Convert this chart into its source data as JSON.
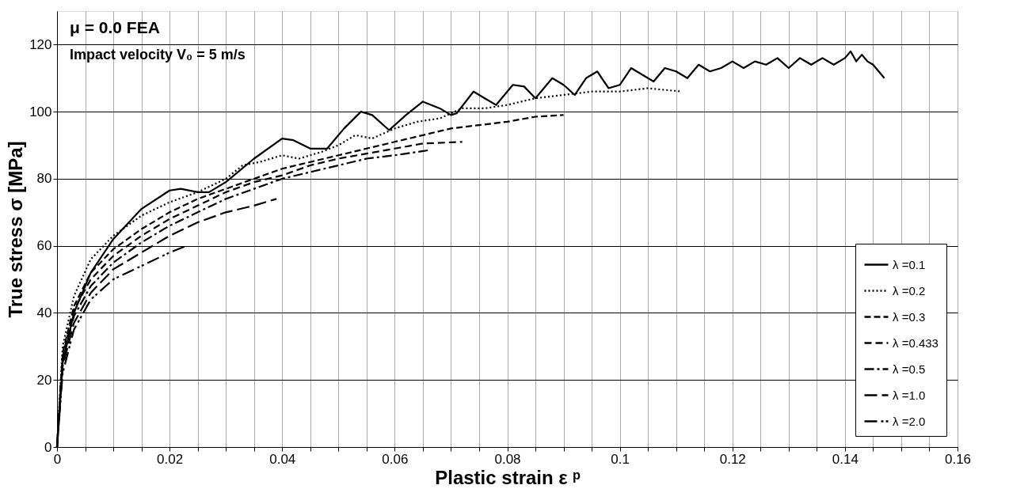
{
  "chart_data": {
    "type": "line",
    "xlabel": "Plastic strain  ε ᵖ",
    "ylabel": "True stress σ  [MPa]",
    "annotations": [
      "μ = 0.0      FEA",
      "Impact velocity V₀ = 5 m/s"
    ],
    "xlim": [
      0,
      0.16
    ],
    "ylim": [
      0,
      130
    ],
    "xticks": [
      0,
      {
        "value": 0.005,
        "label": null
      },
      {
        "value": 0.01,
        "label": null
      },
      {
        "value": 0.015,
        "label": null
      },
      0.02,
      {
        "value": 0.025,
        "label": null
      },
      {
        "value": 0.03,
        "label": null
      },
      {
        "value": 0.035,
        "label": null
      },
      0.04,
      {
        "value": 0.045,
        "label": null
      },
      {
        "value": 0.05,
        "label": null
      },
      {
        "value": 0.055,
        "label": null
      },
      0.06,
      {
        "value": 0.065,
        "label": null
      },
      {
        "value": 0.07,
        "label": null
      },
      {
        "value": 0.075,
        "label": null
      },
      0.08,
      {
        "value": 0.085,
        "label": null
      },
      {
        "value": 0.09,
        "label": null
      },
      {
        "value": 0.095,
        "label": null
      },
      0.1,
      {
        "value": 0.105,
        "label": null
      },
      {
        "value": 0.11,
        "label": null
      },
      {
        "value": 0.115,
        "label": null
      },
      0.12,
      {
        "value": 0.125,
        "label": null
      },
      {
        "value": 0.13,
        "label": null
      },
      {
        "value": 0.135,
        "label": null
      },
      0.14,
      {
        "value": 0.145,
        "label": null
      },
      {
        "value": 0.15,
        "label": null
      },
      {
        "value": 0.155,
        "label": null
      },
      0.16
    ],
    "yticks": [
      0,
      20,
      40,
      60,
      80,
      100,
      120
    ],
    "grid": true,
    "legend": "bottom right",
    "marker": "none",
    "series": [
      {
        "name": "λ =0.1",
        "color": "#000000",
        "line_style": "solid",
        "x": [
          0,
          0.001,
          0.003,
          0.006,
          0.01,
          0.015,
          0.02,
          0.022,
          0.025,
          0.027,
          0.03,
          0.035,
          0.04,
          0.042,
          0.045,
          0.048,
          0.051,
          0.054,
          0.056,
          0.059,
          0.062,
          0.065,
          0.068,
          0.07,
          0.071,
          0.074,
          0.076,
          0.078,
          0.081,
          0.083,
          0.085,
          0.088,
          0.09,
          0.092,
          0.094,
          0.096,
          0.098,
          0.1,
          0.102,
          0.104,
          0.106,
          0.108,
          0.11,
          0.112,
          0.114,
          0.116,
          0.118,
          0.12,
          0.122,
          0.124,
          0.126,
          0.128,
          0.13,
          0.132,
          0.134,
          0.136,
          0.138,
          0.14,
          0.141,
          0.142,
          0.143,
          0.144,
          0.145,
          0.146,
          0.147
        ],
        "values": [
          0,
          25,
          40,
          52,
          62,
          71,
          76.5,
          77,
          76,
          76,
          79,
          86,
          92,
          91.5,
          89,
          89,
          95,
          100,
          99,
          94.5,
          99,
          103,
          101,
          99,
          99.5,
          106,
          104,
          102,
          108,
          107.5,
          104,
          110,
          108,
          105,
          110,
          112,
          107,
          108,
          113,
          111,
          109,
          113,
          112,
          110,
          114,
          112,
          113,
          115,
          113,
          115,
          114,
          116,
          113,
          116,
          114,
          116,
          114,
          116,
          118,
          115,
          117,
          115,
          114,
          112,
          110
        ]
      },
      {
        "name": "λ =0.2",
        "color": "#000000",
        "line_style": "dotted",
        "x": [
          0,
          0.001,
          0.003,
          0.006,
          0.01,
          0.015,
          0.02,
          0.025,
          0.03,
          0.033,
          0.036,
          0.04,
          0.043,
          0.047,
          0.05,
          0.053,
          0.056,
          0.06,
          0.064,
          0.068,
          0.072,
          0.076,
          0.08,
          0.085,
          0.09,
          0.095,
          0.1,
          0.105,
          0.111
        ],
        "values": [
          0,
          30,
          45,
          56,
          63,
          69,
          73,
          76,
          80,
          84,
          85,
          87,
          86,
          88,
          90,
          93,
          92,
          95,
          97,
          98,
          101,
          101,
          102,
          104,
          105,
          106,
          106,
          107,
          106
        ]
      },
      {
        "name": "λ =0.3",
        "color": "#000000",
        "line_style": "dashed",
        "x": [
          0,
          0.001,
          0.003,
          0.006,
          0.01,
          0.015,
          0.02,
          0.025,
          0.03,
          0.035,
          0.04,
          0.045,
          0.05,
          0.055,
          0.06,
          0.065,
          0.07,
          0.075,
          0.08,
          0.085,
          0.09
        ],
        "values": [
          0,
          28,
          42,
          52,
          59,
          65,
          70,
          74,
          77,
          80,
          83,
          85,
          87,
          89,
          91,
          93,
          95,
          96,
          97,
          98.5,
          99
        ]
      },
      {
        "name": "λ =0.433",
        "color": "#000000",
        "line_style": "dashed",
        "x": [
          0,
          0.001,
          0.003,
          0.006,
          0.01,
          0.015,
          0.02,
          0.025,
          0.03,
          0.035,
          0.04,
          0.045,
          0.05,
          0.055,
          0.06,
          0.065,
          0.072
        ],
        "values": [
          0,
          27,
          41,
          50,
          57,
          63,
          68,
          72,
          76,
          79,
          81,
          84,
          86,
          87.5,
          89,
          90.5,
          91
        ]
      },
      {
        "name": "λ =0.5",
        "color": "#000000",
        "line_style": "dashed",
        "x": [
          0,
          0.001,
          0.003,
          0.006,
          0.01,
          0.015,
          0.02,
          0.025,
          0.03,
          0.035,
          0.04,
          0.045,
          0.05,
          0.055,
          0.06,
          0.066
        ],
        "values": [
          0,
          26,
          39,
          48,
          55,
          61,
          66,
          70,
          74,
          77,
          80,
          82,
          84,
          86,
          87,
          88.5
        ]
      },
      {
        "name": "λ =1.0",
        "color": "#000000",
        "line_style": "dashed",
        "x": [
          0,
          0.001,
          0.003,
          0.006,
          0.01,
          0.015,
          0.02,
          0.025,
          0.03,
          0.035,
          0.039
        ],
        "values": [
          0,
          24,
          37,
          46,
          53,
          58,
          63,
          67,
          70,
          72,
          74
        ]
      },
      {
        "name": "λ =2.0",
        "color": "#000000",
        "line_style": "dashed",
        "x": [
          0,
          0.001,
          0.003,
          0.006,
          0.01,
          0.015,
          0.02,
          0.023
        ],
        "values": [
          0,
          22,
          35,
          44,
          50,
          54,
          58,
          60
        ]
      }
    ]
  }
}
